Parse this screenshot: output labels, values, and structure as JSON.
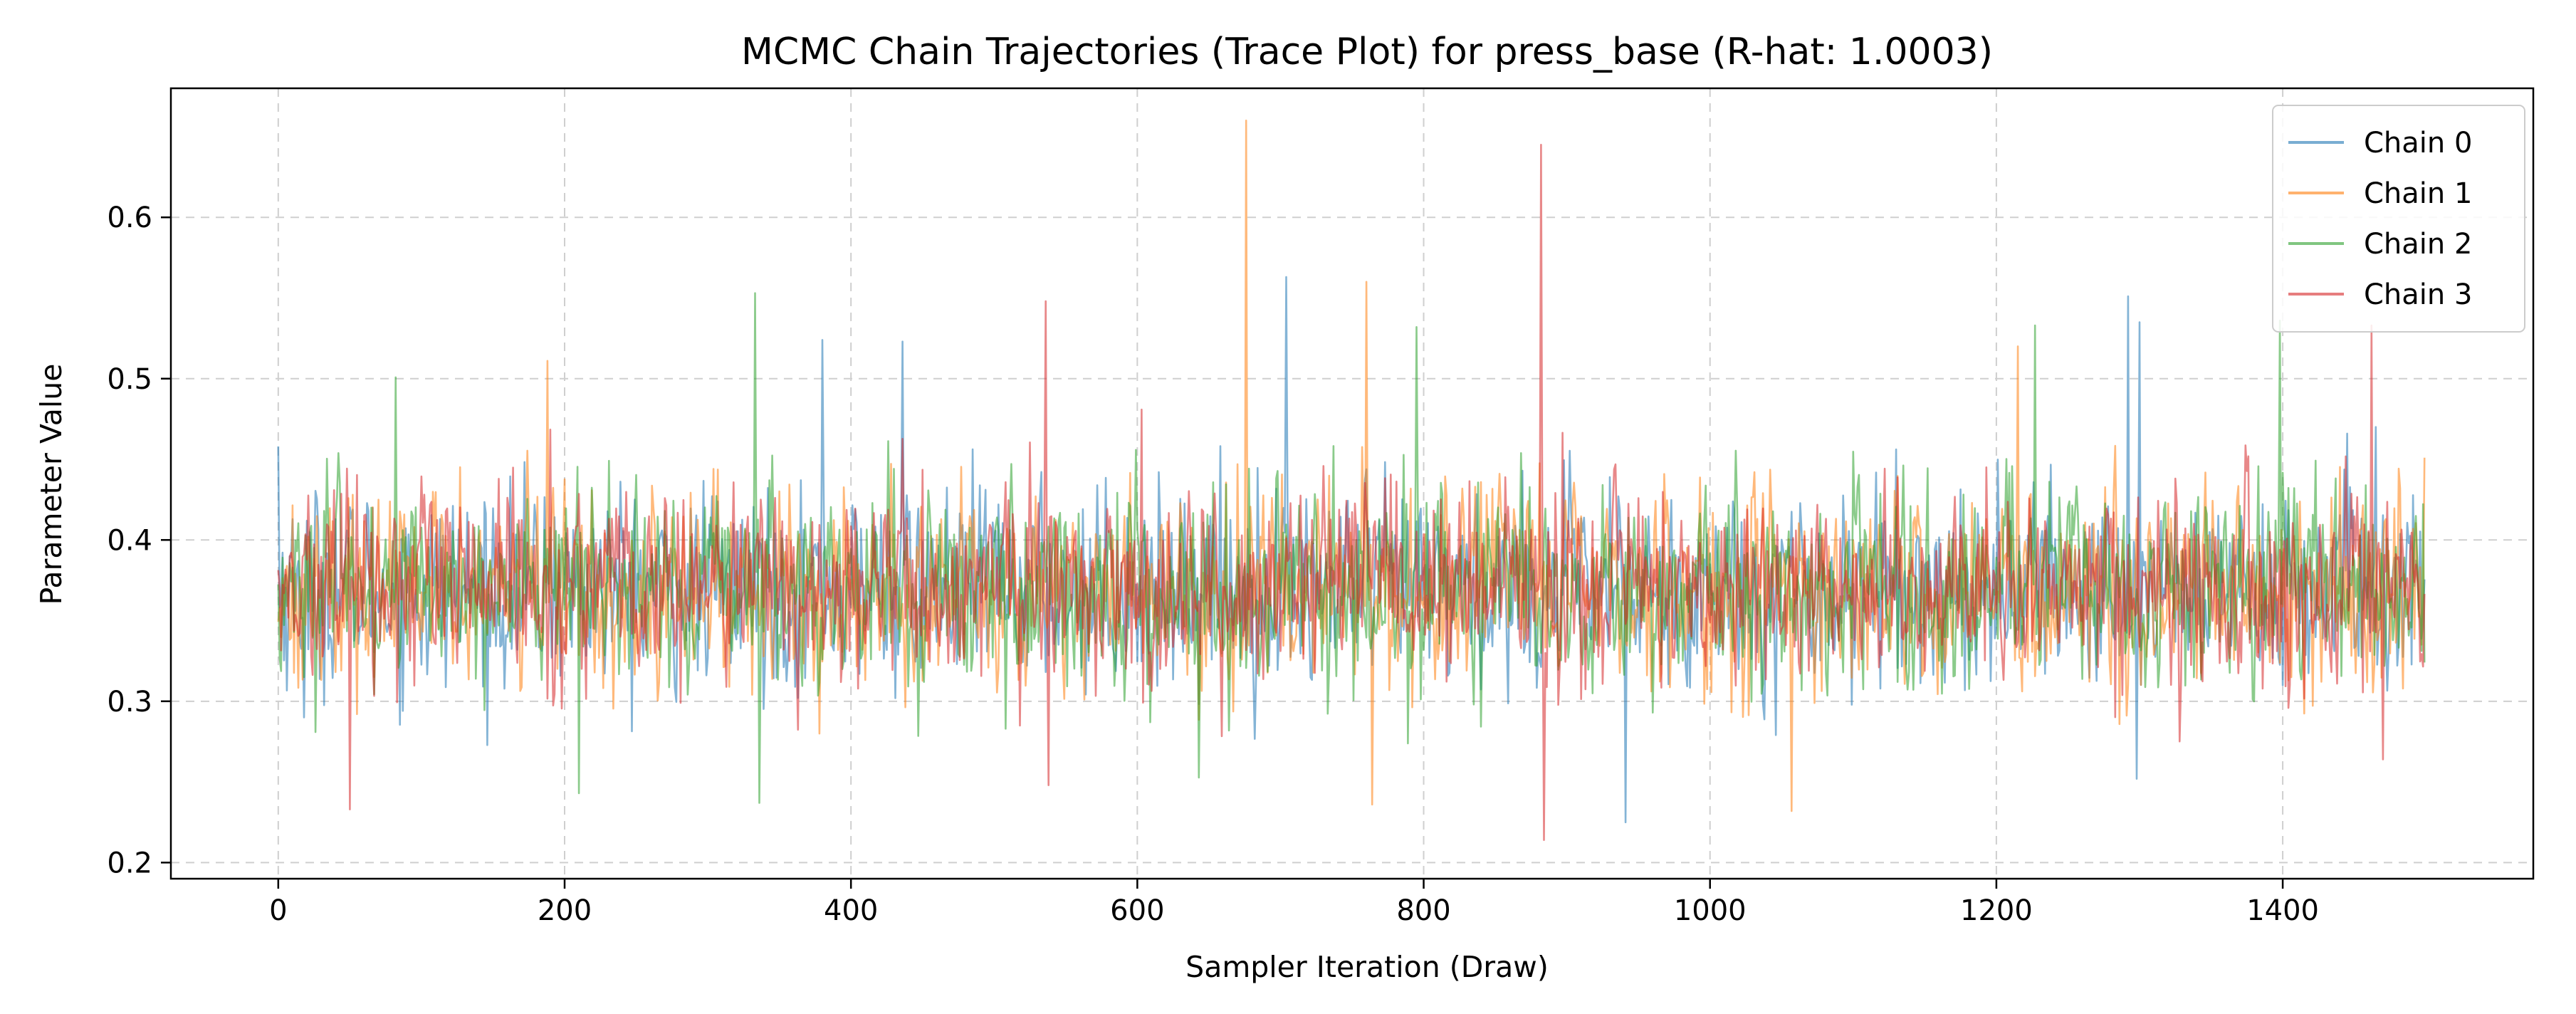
{
  "chart_data": {
    "type": "line",
    "title": "MCMC Chain Trajectories (Trace Plot) for press_base (R-hat: 1.0003)",
    "xlabel": "Sampler Iteration (Draw)",
    "ylabel": "Parameter Value",
    "xlim": [
      -75,
      1575
    ],
    "ylim": [
      0.19,
      0.68
    ],
    "x_ticks": [
      0,
      200,
      400,
      600,
      800,
      1000,
      1200,
      1400
    ],
    "y_ticks": [
      0.2,
      0.3,
      0.4,
      0.5,
      0.6
    ],
    "x_tick_labels": [
      "0",
      "200",
      "400",
      "600",
      "800",
      "1000",
      "1200",
      "1400"
    ],
    "y_tick_labels": [
      "0.2",
      "0.3",
      "0.4",
      "0.5",
      "0.6"
    ],
    "grid": true,
    "legend_position": "top-right",
    "series": [
      {
        "name": "Chain 0",
        "color": "#1f77b4",
        "draws_count": 1500,
        "summary": {
          "center": 0.37,
          "sd": 0.035
        },
        "notable_points": [
          [
            0,
            0.458
          ],
          [
            18,
            0.29
          ],
          [
            380,
            0.524
          ],
          [
            436,
            0.523
          ],
          [
            704,
            0.563
          ],
          [
            941,
            0.225
          ],
          [
            1292,
            0.551
          ],
          [
            1300,
            0.535
          ],
          [
            1298,
            0.252
          ],
          [
            1465,
            0.47
          ]
        ]
      },
      {
        "name": "Chain 1",
        "color": "#ff7f0e",
        "draws_count": 1500,
        "summary": {
          "center": 0.37,
          "sd": 0.035
        },
        "notable_points": [
          [
            188,
            0.511
          ],
          [
            676,
            0.66
          ],
          [
            760,
            0.56
          ],
          [
            764,
            0.236
          ],
          [
            1057,
            0.232
          ],
          [
            1215,
            0.52
          ],
          [
            1500,
            0.451
          ]
        ]
      },
      {
        "name": "Chain 2",
        "color": "#2ca02c",
        "draws_count": 1500,
        "summary": {
          "center": 0.37,
          "sd": 0.035
        },
        "notable_points": [
          [
            333,
            0.553
          ],
          [
            336,
            0.237
          ],
          [
            210,
            0.243
          ],
          [
            795,
            0.532
          ],
          [
            1398,
            0.536
          ],
          [
            1227,
            0.533
          ]
        ]
      },
      {
        "name": "Chain 3",
        "color": "#d62728",
        "draws_count": 1500,
        "summary": {
          "center": 0.37,
          "sd": 0.035
        },
        "notable_points": [
          [
            50,
            0.233
          ],
          [
            536,
            0.548
          ],
          [
            538,
            0.248
          ],
          [
            882,
            0.645
          ],
          [
            884,
            0.214
          ],
          [
            1462,
            0.533
          ],
          [
            1470,
            0.264
          ]
        ]
      }
    ]
  }
}
